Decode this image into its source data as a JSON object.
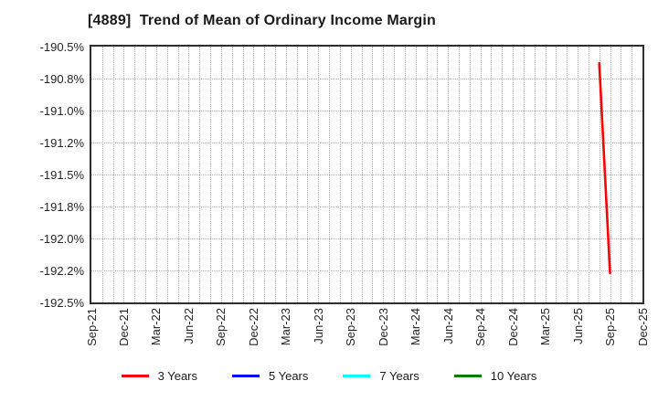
{
  "chart_data": {
    "type": "line",
    "title": "[4889]  Trend of Mean of Ordinary Income Margin",
    "ylabel": "",
    "xlabel": "",
    "ylim": [
      -192.5,
      -190.5
    ],
    "y_ticks": [
      {
        "label": "-190.5%",
        "value": -190.5
      },
      {
        "label": "-190.8%",
        "value": -190.75
      },
      {
        "label": "-191.0%",
        "value": -191.0
      },
      {
        "label": "-191.2%",
        "value": -191.25
      },
      {
        "label": "-191.5%",
        "value": -191.5
      },
      {
        "label": "-191.8%",
        "value": -191.75
      },
      {
        "label": "-192.0%",
        "value": -192.0
      },
      {
        "label": "-192.2%",
        "value": -192.25
      },
      {
        "label": "-192.5%",
        "value": -192.5
      }
    ],
    "x_ticks": [
      "Sep-21",
      "Dec-21",
      "Mar-22",
      "Jun-22",
      "Sep-22",
      "Dec-22",
      "Mar-23",
      "Jun-23",
      "Sep-23",
      "Dec-23",
      "Mar-24",
      "Jun-24",
      "Sep-24",
      "Dec-24",
      "Mar-25",
      "Jun-25",
      "Sep-25",
      "Dec-25"
    ],
    "x_domain": [
      "Sep-21",
      "Dec-25"
    ],
    "grid": {
      "on": true,
      "style": "dotted",
      "color": "#b0b0b0",
      "vertical_minor": "monthly",
      "horizontal_step_pct": 0.25
    },
    "axis_border_color": "#2e2e2e",
    "series": [
      {
        "name": "3 Years",
        "color": "#ff0000",
        "points": [
          [
            "Aug-25",
            -190.63
          ],
          [
            "Sep-25",
            -192.27
          ]
        ]
      },
      {
        "name": "5 Years",
        "color": "#0000ff",
        "points": []
      },
      {
        "name": "7 Years",
        "color": "#00ffff",
        "points": []
      },
      {
        "name": "10 Years",
        "color": "#008000",
        "points": []
      }
    ],
    "legend": {
      "position": "bottom-center",
      "entries": [
        "3 Years",
        "5 Years",
        "7 Years",
        "10 Years"
      ]
    }
  }
}
